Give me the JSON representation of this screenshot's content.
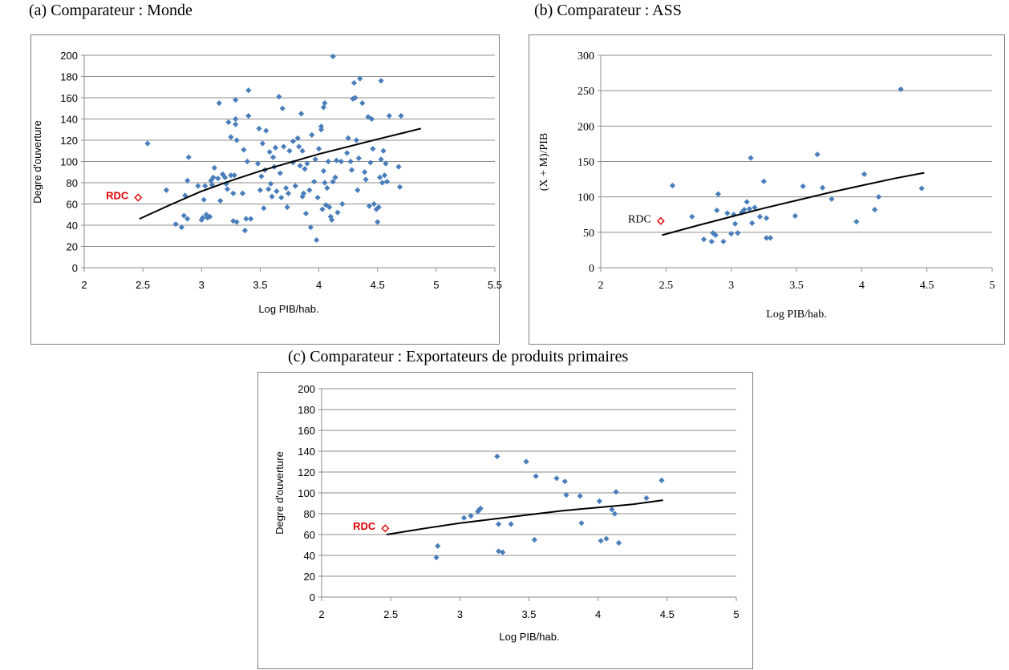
{
  "captions": {
    "a": "(a) Comparateur : Monde",
    "b": "(b) Comparateur : ASS",
    "c": "(c) Comparateur : Exportateurs de produits primaires"
  },
  "colors": {
    "point": "#4a7ebb",
    "grid": "#8c8c8c",
    "trend": "#000000",
    "rdc_marker": "#e00000"
  },
  "chart_data": [
    {
      "type": "scatter",
      "title": "(a) Comparateur : Monde",
      "xlabel": "Log PIB/hab.",
      "ylabel": "Degre d'ouverture",
      "xlim": [
        2,
        5.5
      ],
      "ylim": [
        0,
        200
      ],
      "xticks": [
        "2",
        "2.5",
        "3",
        "3.5",
        "4",
        "4.5",
        "5",
        "5.5"
      ],
      "yticks": [
        "0",
        "20",
        "40",
        "60",
        "80",
        "100",
        "120",
        "140",
        "160",
        "180",
        "200"
      ],
      "grid": "horizontal",
      "annotation": {
        "text": "RDC",
        "x": 2.46,
        "y": 66,
        "color": "#e00000",
        "bold": true
      },
      "trend": [
        [
          2.47,
          46
        ],
        [
          2.75,
          60
        ],
        [
          3.0,
          72
        ],
        [
          3.25,
          82
        ],
        [
          3.5,
          91
        ],
        [
          3.75,
          99
        ],
        [
          4.0,
          107
        ],
        [
          4.25,
          114
        ],
        [
          4.5,
          121
        ],
        [
          4.87,
          131
        ]
      ],
      "points": [
        [
          2.54,
          117
        ],
        [
          2.7,
          73
        ],
        [
          2.78,
          41
        ],
        [
          2.83,
          38
        ],
        [
          2.85,
          49
        ],
        [
          2.86,
          68
        ],
        [
          2.88,
          46
        ],
        [
          2.88,
          82
        ],
        [
          2.89,
          104
        ],
        [
          2.97,
          77
        ],
        [
          3.0,
          45
        ],
        [
          3.01,
          47
        ],
        [
          3.02,
          64
        ],
        [
          3.03,
          77
        ],
        [
          3.04,
          50
        ],
        [
          3.05,
          47
        ],
        [
          3.07,
          48
        ],
        [
          3.08,
          82
        ],
        [
          3.09,
          78
        ],
        [
          3.1,
          85
        ],
        [
          3.11,
          94
        ],
        [
          3.14,
          84
        ],
        [
          3.15,
          155
        ],
        [
          3.16,
          63
        ],
        [
          3.18,
          88
        ],
        [
          3.2,
          85
        ],
        [
          3.21,
          79
        ],
        [
          3.22,
          74
        ],
        [
          3.23,
          137
        ],
        [
          3.25,
          87
        ],
        [
          3.25,
          123
        ],
        [
          3.27,
          44
        ],
        [
          3.27,
          70
        ],
        [
          3.28,
          87
        ],
        [
          3.29,
          140
        ],
        [
          3.29,
          135
        ],
        [
          3.29,
          158
        ],
        [
          3.3,
          43
        ],
        [
          3.35,
          70
        ],
        [
          3.36,
          111
        ],
        [
          3.37,
          35
        ],
        [
          3.38,
          46
        ],
        [
          3.39,
          100
        ],
        [
          3.4,
          143
        ],
        [
          3.4,
          167
        ],
        [
          3.42,
          46
        ],
        [
          3.49,
          131
        ],
        [
          3.5,
          73
        ],
        [
          3.51,
          86
        ],
        [
          3.52,
          117
        ],
        [
          3.53,
          56
        ],
        [
          3.54,
          92
        ],
        [
          3.55,
          129
        ],
        [
          3.57,
          74
        ],
        [
          3.58,
          109
        ],
        [
          3.59,
          79
        ],
        [
          3.6,
          67
        ],
        [
          3.61,
          104
        ],
        [
          3.62,
          95
        ],
        [
          3.63,
          113
        ],
        [
          3.64,
          72
        ],
        [
          3.66,
          161
        ],
        [
          3.67,
          89
        ],
        [
          3.68,
          66
        ],
        [
          3.69,
          150
        ],
        [
          3.7,
          114
        ],
        [
          3.72,
          75
        ],
        [
          3.73,
          57
        ],
        [
          3.74,
          70
        ],
        [
          3.75,
          110
        ],
        [
          3.78,
          99
        ],
        [
          3.8,
          77
        ],
        [
          3.82,
          122
        ],
        [
          3.83,
          114
        ],
        [
          3.84,
          96
        ],
        [
          3.85,
          145
        ],
        [
          3.86,
          67
        ],
        [
          3.86,
          110
        ],
        [
          3.87,
          70
        ],
        [
          3.88,
          93
        ],
        [
          3.89,
          51
        ],
        [
          3.9,
          98
        ],
        [
          3.92,
          73
        ],
        [
          3.93,
          38
        ],
        [
          3.94,
          125
        ],
        [
          3.96,
          81
        ],
        [
          3.97,
          102
        ],
        [
          3.98,
          26
        ],
        [
          3.99,
          66
        ],
        [
          4.02,
          130
        ],
        [
          4.02,
          133
        ],
        [
          4.03,
          55
        ],
        [
          4.04,
          91
        ],
        [
          4.04,
          151
        ],
        [
          4.05,
          155
        ],
        [
          4.05,
          80
        ],
        [
          4.06,
          59
        ],
        [
          4.07,
          75
        ],
        [
          4.08,
          100
        ],
        [
          4.09,
          57
        ],
        [
          4.1,
          48
        ],
        [
          4.11,
          45
        ],
        [
          4.12,
          199
        ],
        [
          4.12,
          81
        ],
        [
          4.14,
          85
        ],
        [
          4.15,
          101
        ],
        [
          4.16,
          52
        ],
        [
          4.19,
          100
        ],
        [
          4.2,
          60
        ],
        [
          4.24,
          108
        ],
        [
          4.25,
          122
        ],
        [
          4.27,
          100
        ],
        [
          4.28,
          92
        ],
        [
          4.29,
          159
        ],
        [
          4.3,
          174
        ],
        [
          4.31,
          160
        ],
        [
          4.32,
          120
        ],
        [
          4.33,
          73
        ],
        [
          4.34,
          103
        ],
        [
          4.35,
          178
        ],
        [
          4.37,
          155
        ],
        [
          4.39,
          90
        ],
        [
          4.4,
          83
        ],
        [
          4.42,
          142
        ],
        [
          4.43,
          58
        ],
        [
          4.44,
          99
        ],
        [
          4.45,
          140
        ],
        [
          4.46,
          112
        ],
        [
          4.47,
          60
        ],
        [
          4.49,
          55
        ],
        [
          4.5,
          43
        ],
        [
          4.51,
          57
        ],
        [
          4.52,
          85
        ],
        [
          4.53,
          102
        ],
        [
          4.53,
          176
        ],
        [
          4.54,
          80
        ],
        [
          4.55,
          110
        ],
        [
          4.56,
          87
        ],
        [
          4.57,
          98
        ],
        [
          4.58,
          81
        ],
        [
          4.6,
          143
        ],
        [
          4.68,
          95
        ],
        [
          4.69,
          76
        ],
        [
          4.7,
          143
        ],
        [
          4.0,
          112
        ],
        [
          3.78,
          119
        ],
        [
          3.48,
          98
        ],
        [
          3.3,
          120
        ]
      ]
    },
    {
      "type": "scatter",
      "title": "(b) Comparateur : ASS",
      "xlabel": "Log PIB/hab.",
      "ylabel": "(X + M)/PIB",
      "xlim": [
        2,
        5
      ],
      "ylim": [
        0,
        300
      ],
      "xticks": [
        "2",
        "2.5",
        "3",
        "3.5",
        "4",
        "4.5",
        "5"
      ],
      "yticks": [
        "0",
        "50",
        "100",
        "150",
        "200",
        "250",
        "300"
      ],
      "grid": "horizontal",
      "annotation": {
        "text": "RDC",
        "x": 2.46,
        "y": 66,
        "color": "#000000",
        "bold": false
      },
      "trend": [
        [
          2.47,
          46
        ],
        [
          2.75,
          60
        ],
        [
          3.0,
          72
        ],
        [
          3.25,
          84
        ],
        [
          3.5,
          95
        ],
        [
          3.75,
          106
        ],
        [
          4.0,
          116
        ],
        [
          4.25,
          126
        ],
        [
          4.48,
          134
        ]
      ],
      "points": [
        [
          2.55,
          116
        ],
        [
          2.7,
          72
        ],
        [
          2.79,
          40
        ],
        [
          2.85,
          37
        ],
        [
          2.86,
          49
        ],
        [
          2.88,
          46
        ],
        [
          2.89,
          81
        ],
        [
          2.9,
          104
        ],
        [
          2.94,
          37
        ],
        [
          2.97,
          77
        ],
        [
          3.0,
          48
        ],
        [
          3.02,
          75
        ],
        [
          3.03,
          62
        ],
        [
          3.05,
          49
        ],
        [
          3.08,
          78
        ],
        [
          3.1,
          82
        ],
        [
          3.12,
          93
        ],
        [
          3.14,
          83
        ],
        [
          3.15,
          155
        ],
        [
          3.16,
          63
        ],
        [
          3.18,
          85
        ],
        [
          3.22,
          72
        ],
        [
          3.25,
          122
        ],
        [
          3.27,
          70
        ],
        [
          3.27,
          42
        ],
        [
          3.3,
          42
        ],
        [
          3.49,
          73
        ],
        [
          3.55,
          115
        ],
        [
          3.66,
          160
        ],
        [
          3.7,
          113
        ],
        [
          3.77,
          97
        ],
        [
          3.96,
          65
        ],
        [
          4.02,
          132
        ],
        [
          4.1,
          82
        ],
        [
          4.13,
          100
        ],
        [
          4.3,
          252
        ],
        [
          4.46,
          112
        ]
      ]
    },
    {
      "type": "scatter",
      "title": "(c) Comparateur : Exportateurs de produits primaires",
      "xlabel": "Log PIB/hab.",
      "ylabel": "Degre d'ouverture",
      "xlim": [
        2,
        5
      ],
      "ylim": [
        0,
        200
      ],
      "xticks": [
        "2",
        "2.5",
        "3",
        "3.5",
        "4",
        "4.5",
        "5"
      ],
      "yticks": [
        "0",
        "20",
        "40",
        "60",
        "80",
        "100",
        "120",
        "140",
        "160",
        "180",
        "200"
      ],
      "grid": "horizontal",
      "annotation": {
        "text": "RDC",
        "x": 2.46,
        "y": 66,
        "color": "#e00000",
        "bold": true
      },
      "trend": [
        [
          2.47,
          60
        ],
        [
          2.75,
          66
        ],
        [
          3.0,
          71
        ],
        [
          3.25,
          75
        ],
        [
          3.5,
          79
        ],
        [
          3.75,
          83
        ],
        [
          4.0,
          86
        ],
        [
          4.25,
          89
        ],
        [
          4.47,
          93
        ]
      ],
      "points": [
        [
          2.83,
          38
        ],
        [
          2.84,
          49
        ],
        [
          3.03,
          76
        ],
        [
          3.08,
          78
        ],
        [
          3.13,
          82
        ],
        [
          3.14,
          84
        ],
        [
          3.15,
          85
        ],
        [
          3.27,
          135
        ],
        [
          3.28,
          44
        ],
        [
          3.28,
          70
        ],
        [
          3.31,
          43
        ],
        [
          3.37,
          70
        ],
        [
          3.48,
          130
        ],
        [
          3.54,
          55
        ],
        [
          3.55,
          116
        ],
        [
          3.7,
          114
        ],
        [
          3.76,
          111
        ],
        [
          3.77,
          98
        ],
        [
          3.87,
          97
        ],
        [
          3.88,
          71
        ],
        [
          4.01,
          92
        ],
        [
          4.02,
          54
        ],
        [
          4.06,
          56
        ],
        [
          4.1,
          84
        ],
        [
          4.12,
          80
        ],
        [
          4.13,
          101
        ],
        [
          4.15,
          52
        ],
        [
          4.35,
          95
        ],
        [
          4.46,
          112
        ]
      ]
    }
  ]
}
